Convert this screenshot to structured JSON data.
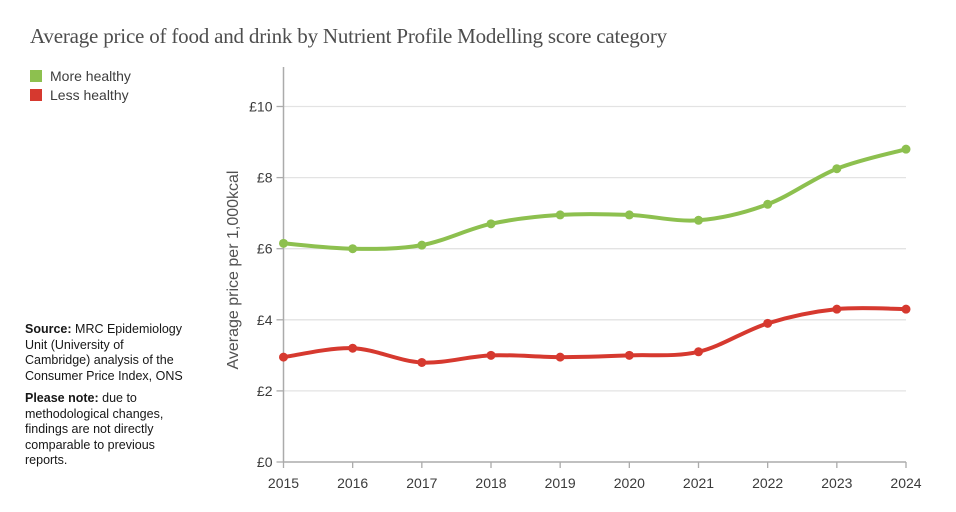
{
  "title": "Average price of food and drink by Nutrient Profile Modelling score category",
  "legend": [
    {
      "label": "More healthy",
      "color": "#8dc04f"
    },
    {
      "label": "Less healthy",
      "color": "#d6392f"
    }
  ],
  "source_note": {
    "source_label": "Source:",
    "source_text": "MRC Epidemiology Unit (University of Cambridge) analysis of the Consumer Price Index, ONS",
    "note_label": "Please note:",
    "note_text": "due to methodological changes, findings are not directly comparable to previous reports."
  },
  "chart_data": {
    "type": "line",
    "title": "Average price of food and drink by Nutrient Profile Modelling score category",
    "x": [
      2015,
      2016,
      2017,
      2018,
      2019,
      2020,
      2021,
      2022,
      2023,
      2024
    ],
    "series": [
      {
        "name": "More healthy",
        "color": "#8dc04f",
        "values": [
          6.15,
          6.0,
          6.1,
          6.7,
          6.95,
          6.95,
          6.8,
          7.25,
          8.25,
          8.8
        ]
      },
      {
        "name": "Less healthy",
        "color": "#d6392f",
        "values": [
          2.95,
          3.2,
          2.8,
          3.0,
          2.95,
          3.0,
          3.1,
          3.9,
          4.3,
          4.3
        ]
      }
    ],
    "xlabel": "",
    "ylabel": "Average price per 1,000kcal",
    "y_ticks": [
      "£0",
      "£2",
      "£4",
      "£6",
      "£8",
      "£10"
    ],
    "y_tick_values": [
      0,
      2,
      4,
      6,
      8,
      10
    ],
    "ylim": [
      0,
      11.1
    ],
    "grid": true,
    "legend_position": "top-left",
    "marker": "circle",
    "smooth": true,
    "colors": {
      "axis": "#ababab",
      "gridline": "#e3e3e3",
      "tick_label": "#3b3b3b"
    }
  }
}
